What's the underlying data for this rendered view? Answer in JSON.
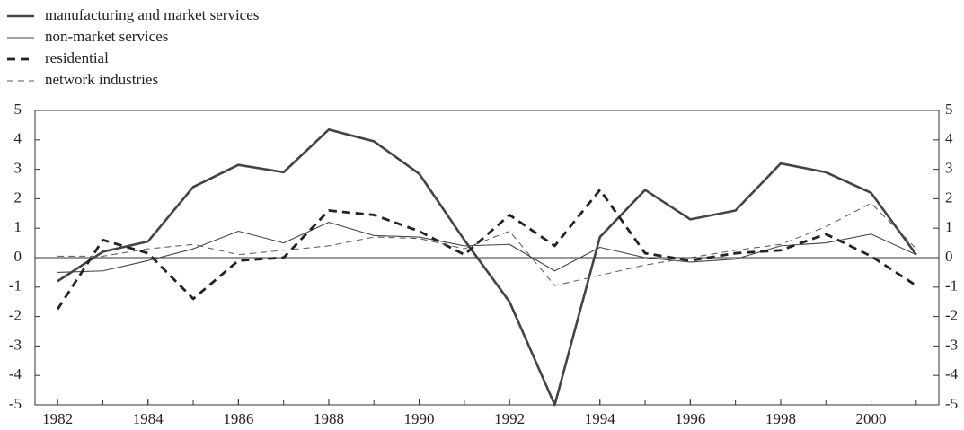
{
  "chart_data": {
    "type": "line",
    "x": [
      1982,
      1983,
      1984,
      1985,
      1986,
      1987,
      1988,
      1989,
      1990,
      1991,
      1992,
      1993,
      1994,
      1995,
      1996,
      1997,
      1998,
      1999,
      2000,
      2001
    ],
    "series": [
      {
        "name": "manufacturing and market services",
        "color": "#444444",
        "line_width": 2.6,
        "dashed": false,
        "values": [
          -0.8,
          0.2,
          0.55,
          2.4,
          3.15,
          2.9,
          4.35,
          3.95,
          2.85,
          0.6,
          -1.5,
          -5.0,
          0.7,
          2.3,
          1.3,
          1.6,
          3.2,
          2.9,
          2.2,
          0.1
        ]
      },
      {
        "name": "non-market services",
        "color": "#444444",
        "line_width": 1.1,
        "dashed": false,
        "values": [
          -0.5,
          -0.45,
          -0.1,
          0.3,
          0.9,
          0.5,
          1.2,
          0.75,
          0.7,
          0.4,
          0.45,
          -0.45,
          0.35,
          0.0,
          -0.15,
          -0.05,
          0.4,
          0.5,
          0.8,
          0.1
        ]
      },
      {
        "name": "residential",
        "color": "#222222",
        "line_width": 2.8,
        "dashed": true,
        "values": [
          -1.75,
          0.6,
          0.15,
          -1.4,
          -0.1,
          0.0,
          1.6,
          1.45,
          0.9,
          0.1,
          1.45,
          0.4,
          2.3,
          0.15,
          -0.1,
          0.15,
          0.25,
          0.8,
          0.05,
          -0.95
        ]
      },
      {
        "name": "network industries",
        "color": "#555555",
        "line_width": 1.0,
        "dashed": true,
        "values": [
          0.05,
          0.05,
          0.3,
          0.45,
          0.1,
          0.25,
          0.4,
          0.7,
          0.65,
          0.3,
          0.9,
          -0.95,
          -0.6,
          -0.25,
          0.0,
          0.25,
          0.45,
          1.05,
          1.85,
          0.3
        ]
      }
    ],
    "xlim": [
      1981.5,
      2001.5
    ],
    "xticks": [
      1982,
      1984,
      1986,
      1988,
      1990,
      1992,
      1994,
      1996,
      1998,
      2000
    ],
    "ylim": [
      -5,
      5
    ],
    "yticks": [
      -5,
      -4,
      -3,
      -2,
      -1,
      0,
      1,
      2,
      3,
      4,
      5
    ],
    "y2lim": [
      -5,
      5
    ],
    "y2ticks": [
      -5,
      -4,
      -3,
      -2,
      -1,
      0,
      1,
      2,
      3,
      4,
      5
    ],
    "legend": "top-left"
  }
}
